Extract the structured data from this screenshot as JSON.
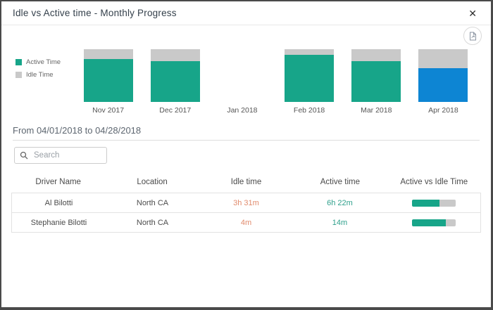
{
  "dialog": {
    "title": "Idle vs Active time - Monthly Progress",
    "close_label": "✕"
  },
  "chart_data": {
    "type": "bar",
    "subtype": "stacked-100-percent",
    "categories": [
      "Nov 2017",
      "Dec 2017",
      "Jan 2018",
      "Feb 2018",
      "Mar 2018",
      "Apr 2018"
    ],
    "series": [
      {
        "name": "Active Time",
        "values": [
          82,
          78,
          0,
          90,
          77,
          64
        ]
      },
      {
        "name": "Idle Time",
        "values": [
          18,
          22,
          0,
          10,
          23,
          36
        ]
      }
    ],
    "selected_category": "Apr 2018",
    "legend_position": "left",
    "ylim": [
      0,
      100
    ],
    "grid": false,
    "colors": {
      "active": "#17a589",
      "idle": "#c9c9c9",
      "selected_active": "#0d85d3"
    }
  },
  "period": {
    "label": "From 04/01/2018 to 04/28/2018"
  },
  "search": {
    "placeholder": "Search"
  },
  "table": {
    "columns": [
      "Driver Name",
      "Location",
      "Idle time",
      "Active time",
      "Active vs Idle Time"
    ],
    "rows": [
      {
        "driver_name": "Al Bilotti",
        "location": "North CA",
        "idle_time": "3h 31m",
        "active_time": "6h 22m",
        "active_pct": 64
      },
      {
        "driver_name": "Stephanie Bilotti",
        "location": "North CA",
        "idle_time": "4m",
        "active_time": "14m",
        "active_pct": 78
      }
    ]
  }
}
